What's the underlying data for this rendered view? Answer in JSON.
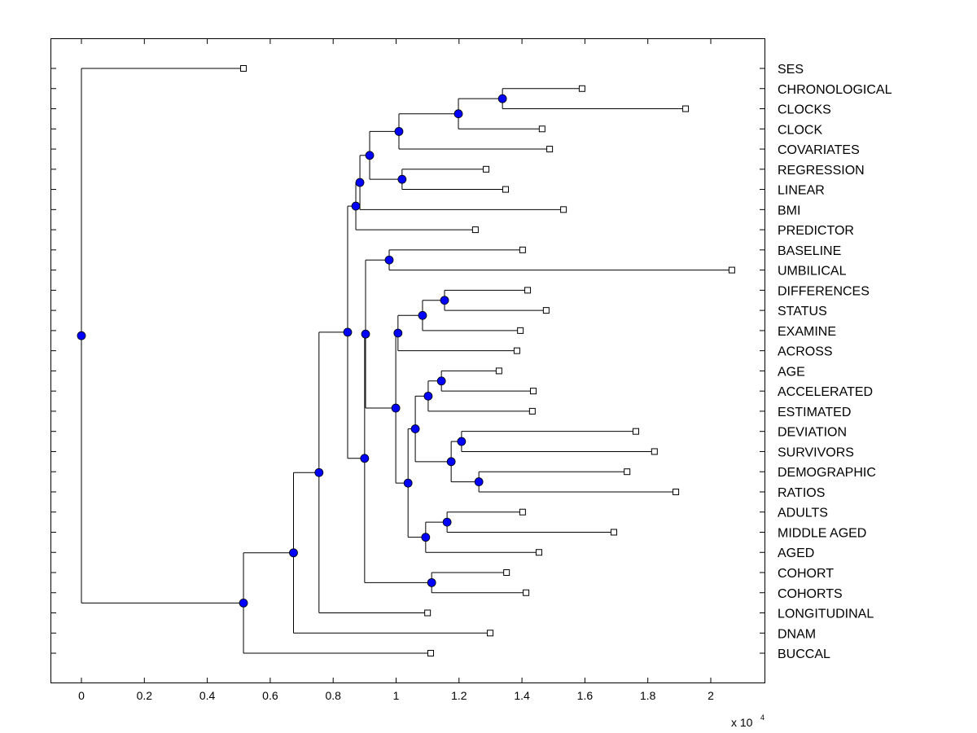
{
  "chart_data": {
    "type": "dendrogram",
    "title": "",
    "xlabel": "",
    "x_multiplier_label": "x 10",
    "x_multiplier_exponent": "4",
    "xlim": [
      -0.1,
      2.17
    ],
    "xticks": [
      0,
      0.2,
      0.4,
      0.6,
      0.8,
      1,
      1.2,
      1.4,
      1.6,
      1.8,
      2
    ],
    "xtick_labels": [
      "0",
      "0.2",
      "0.4",
      "0.6",
      "0.8",
      "1",
      "1.2",
      "1.4",
      "1.6",
      "1.8",
      "2"
    ],
    "colors": {
      "node": "#0000ff",
      "leaf": "#ffffff",
      "line": "#000000"
    },
    "tree": {
      "h": 0,
      "children": [
        {
          "label": "SES",
          "h": 0.515
        },
        {
          "h": 0.515,
          "children": [
            {
              "h": 0.674,
              "children": [
                {
                  "h": 0.755,
                  "children": [
                    {
                      "h": 0.846,
                      "children": [
                        {
                          "h": 0.872,
                          "children": [
                            {
                              "h": 0.885,
                              "children": [
                                {
                                  "h": 0.916,
                                  "children": [
                                    {
                                      "h": 1.009,
                                      "children": [
                                        {
                                          "h": 1.198,
                                          "children": [
                                            {
                                              "h": 1.338,
                                              "children": [
                                                {
                                                  "label": "CHRONOLOGICAL",
                                                  "h": 1.591
                                                },
                                                {
                                                  "label": "CLOCKS",
                                                  "h": 1.92
                                                }
                                              ]
                                            },
                                            {
                                              "label": "CLOCK",
                                              "h": 1.464
                                            }
                                          ]
                                        },
                                        {
                                          "label": "COVARIATES",
                                          "h": 1.488
                                        }
                                      ]
                                    },
                                    {
                                      "h": 1.019,
                                      "children": [
                                        {
                                          "label": "REGRESSION",
                                          "h": 1.286
                                        },
                                        {
                                          "label": "LINEAR",
                                          "h": 1.348
                                        }
                                      ]
                                    }
                                  ]
                                },
                                {
                                  "label": "BMI",
                                  "h": 1.532
                                }
                              ]
                            },
                            {
                              "label": "PREDICTOR",
                              "h": 1.252
                            }
                          ]
                        },
                        {
                          "h": 0.9,
                          "children": [
                            {
                              "h": 0.903,
                              "children": [
                                {
                                  "h": 0.978,
                                  "children": [
                                    {
                                      "label": "BASELINE",
                                      "h": 1.402
                                    },
                                    {
                                      "label": "UMBILICAL",
                                      "h": 2.067
                                    }
                                  ]
                                },
                                {
                                  "h": 0.999,
                                  "children": [
                                    {
                                      "h": 1.006,
                                      "children": [
                                        {
                                          "h": 1.084,
                                          "children": [
                                            {
                                              "h": 1.154,
                                              "children": [
                                                {
                                                  "label": "DIFFERENCES",
                                                  "h": 1.418
                                                },
                                                {
                                                  "label": "STATUS",
                                                  "h": 1.477
                                                }
                                              ]
                                            },
                                            {
                                              "label": "EXAMINE",
                                              "h": 1.395
                                            }
                                          ]
                                        },
                                        {
                                          "label": "ACROSS",
                                          "h": 1.384
                                        }
                                      ]
                                    },
                                    {
                                      "h": 1.038,
                                      "children": [
                                        {
                                          "h": 1.061,
                                          "children": [
                                            {
                                              "h": 1.102,
                                              "children": [
                                                {
                                                  "h": 1.144,
                                                  "children": [
                                                    {
                                                      "label": "AGE",
                                                      "h": 1.327
                                                    },
                                                    {
                                                      "label": "ACCELERATED",
                                                      "h": 1.436
                                                    }
                                                  ]
                                                },
                                                {
                                                  "label": "ESTIMATED",
                                                  "h": 1.433
                                                }
                                              ]
                                            },
                                            {
                                              "h": 1.175,
                                              "children": [
                                                {
                                                  "h": 1.208,
                                                  "children": [
                                                    {
                                                      "label": "DEVIATION",
                                                      "h": 1.762
                                                    },
                                                    {
                                                      "label": "SURVIVORS",
                                                      "h": 1.821
                                                    }
                                                  ]
                                                },
                                                {
                                                  "h": 1.263,
                                                  "children": [
                                                    {
                                                      "label": "DEMOGRAPHIC",
                                                      "h": 1.734
                                                    },
                                                    {
                                                      "label": "RATIOS",
                                                      "h": 1.889
                                                    }
                                                  ]
                                                }
                                              ]
                                            }
                                          ]
                                        },
                                        {
                                          "h": 1.094,
                                          "children": [
                                            {
                                              "h": 1.162,
                                              "children": [
                                                {
                                                  "label": "ADULTS",
                                                  "h": 1.402
                                                },
                                                {
                                                  "label": "MIDDLE AGED",
                                                  "h": 1.692
                                                }
                                              ]
                                            },
                                            {
                                              "label": "AGED",
                                              "h": 1.454
                                            }
                                          ]
                                        }
                                      ]
                                    }
                                  ]
                                }
                              ]
                            },
                            {
                              "h": 1.113,
                              "children": [
                                {
                                  "label": "COHORT",
                                  "h": 1.351
                                },
                                {
                                  "label": "COHORTS",
                                  "h": 1.413
                                }
                              ]
                            }
                          ]
                        }
                      ]
                    },
                    {
                      "label": "LONGITUDINAL",
                      "h": 1.1
                    }
                  ]
                },
                {
                  "label": "DNAM",
                  "h": 1.299
                }
              ]
            },
            {
              "label": "BUCCAL",
              "h": 1.11
            }
          ]
        }
      ]
    }
  }
}
